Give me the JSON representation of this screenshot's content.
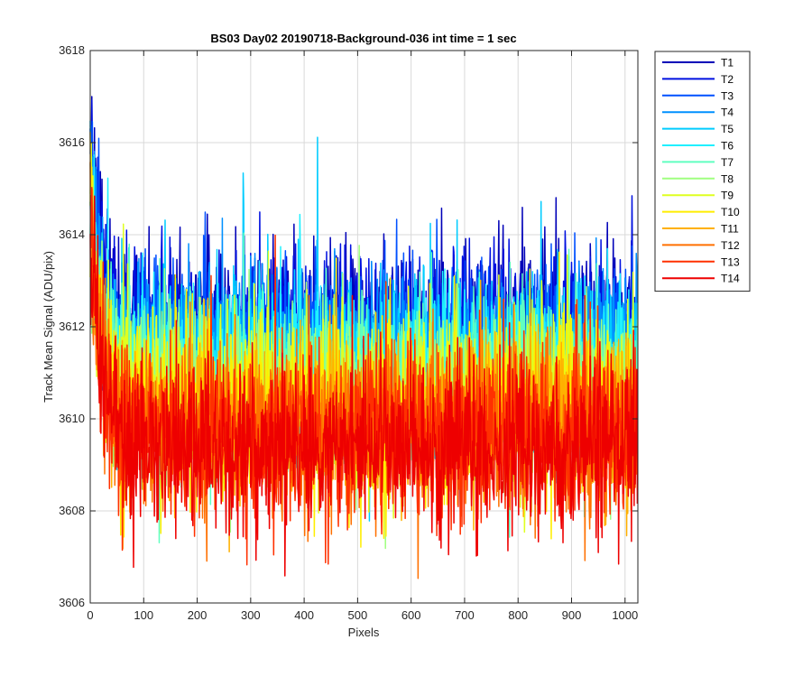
{
  "chart_data": {
    "type": "line",
    "title": "BS03 Day02 20190718-Background-036 int time = 1 sec",
    "xlabel": "Pixels",
    "ylabel": "Track Mean Signal (ADU/pix)",
    "xlim": [
      0,
      1024
    ],
    "ylim": [
      3606,
      3618
    ],
    "xticks": [
      0,
      100,
      200,
      300,
      400,
      500,
      600,
      700,
      800,
      900,
      1000
    ],
    "yticks": [
      3606,
      3608,
      3610,
      3612,
      3614,
      3616,
      3618
    ],
    "grid": true,
    "legend_position": "outside-top-right",
    "n_points_per_series": 1024,
    "noise_sigma": 0.9,
    "series": [
      {
        "name": "T1",
        "color": "#0000b8",
        "mean": 3612.0,
        "start": 3616.9
      },
      {
        "name": "T2",
        "color": "#0010e0",
        "mean": 3611.8,
        "start": 3616.3
      },
      {
        "name": "T3",
        "color": "#0050ff",
        "mean": 3611.6,
        "start": 3615.9
      },
      {
        "name": "T4",
        "color": "#0090ff",
        "mean": 3611.4,
        "start": 3615.6
      },
      {
        "name": "T5",
        "color": "#00ccff",
        "mean": 3611.2,
        "start": 3615.4
      },
      {
        "name": "T6",
        "color": "#20f0ff",
        "mean": 3611.0,
        "start": 3615.2
      },
      {
        "name": "T7",
        "color": "#60ffc0",
        "mean": 3610.8,
        "start": 3615.0
      },
      {
        "name": "T8",
        "color": "#a0ff80",
        "mean": 3610.6,
        "start": 3614.9
      },
      {
        "name": "T9",
        "color": "#dfff20",
        "mean": 3610.4,
        "start": 3614.8
      },
      {
        "name": "T10",
        "color": "#ffee00",
        "mean": 3610.2,
        "start": 3614.7
      },
      {
        "name": "T11",
        "color": "#ffb000",
        "mean": 3610.0,
        "start": 3614.6
      },
      {
        "name": "T12",
        "color": "#ff7000",
        "mean": 3609.8,
        "start": 3614.5
      },
      {
        "name": "T13",
        "color": "#ff3000",
        "mean": 3609.6,
        "start": 3614.4
      },
      {
        "name": "T14",
        "color": "#ee0000",
        "mean": 3609.4,
        "start": 3614.3
      }
    ]
  }
}
